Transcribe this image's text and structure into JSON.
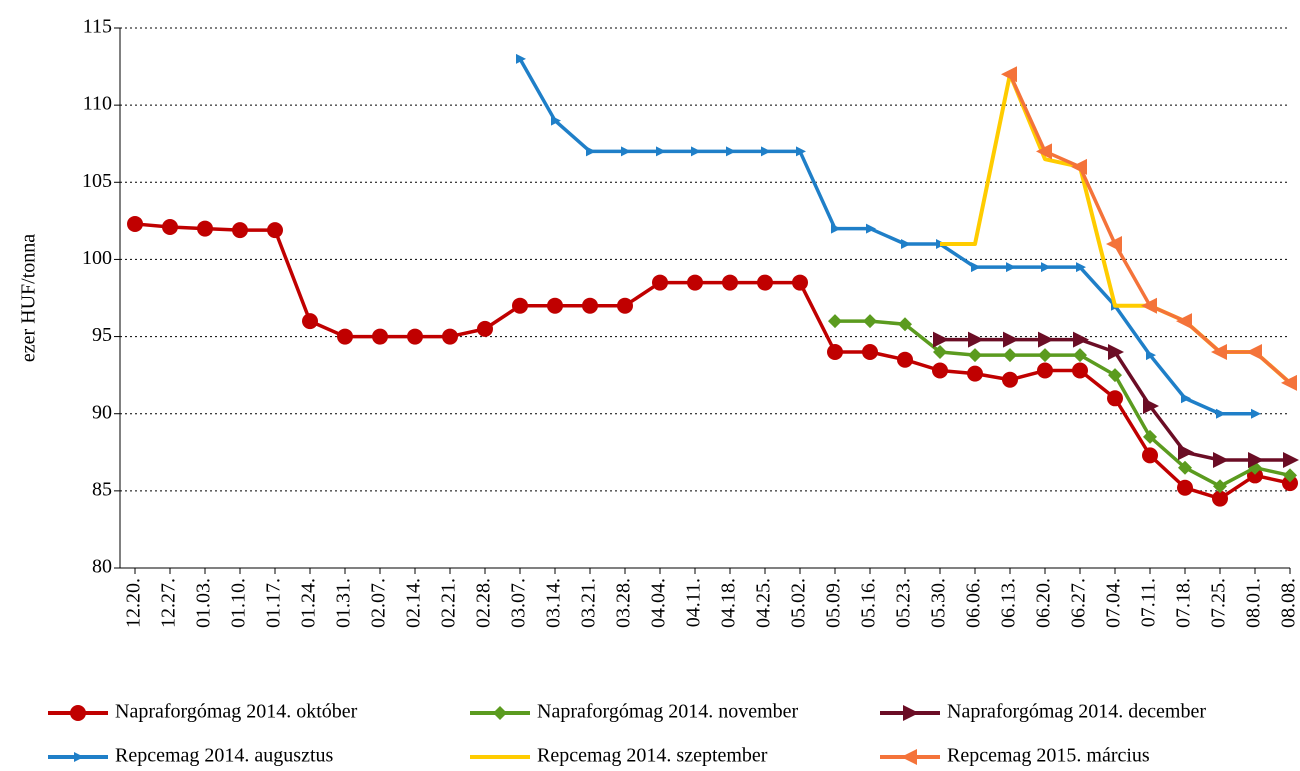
{
  "chart_data": {
    "type": "line",
    "ylabel": "ezer HUF/tonna",
    "categories": [
      "12.20.",
      "12.27.",
      "01.03.",
      "01.10.",
      "01.17.",
      "01.24.",
      "01.31.",
      "02.07.",
      "02.14.",
      "02.21.",
      "02.28.",
      "03.07.",
      "03.14.",
      "03.21.",
      "03.28.",
      "04.04.",
      "04.11.",
      "04.18.",
      "04.25.",
      "05.02.",
      "05.09.",
      "05.16.",
      "05.23.",
      "05.30.",
      "06.06.",
      "06.13.",
      "06.20.",
      "06.27.",
      "07.04.",
      "07.11.",
      "07.18.",
      "07.25.",
      "08.01.",
      "08.08."
    ],
    "ylim": [
      80,
      115
    ],
    "yticks": [
      80,
      85,
      90,
      95,
      100,
      105,
      110,
      115
    ],
    "grid": true,
    "legend": "bottom",
    "series": [
      {
        "name": "Napraforgómag 2014. október",
        "color": "#c00000",
        "marker": "circle",
        "values": [
          102.3,
          102.1,
          102,
          101.9,
          101.9,
          96,
          95,
          95,
          95,
          95,
          95.5,
          97,
          97,
          97,
          97,
          98.5,
          98.5,
          98.5,
          98.5,
          98.5,
          94,
          94,
          93.5,
          92.8,
          92.6,
          92.2,
          92.8,
          92.8,
          91,
          87.3,
          85.2,
          84.5,
          86,
          85.5
        ]
      },
      {
        "name": "Napraforgómag 2014. november",
        "color": "#5b9b1f",
        "marker": "diamond",
        "values": [
          null,
          null,
          null,
          null,
          null,
          null,
          null,
          null,
          null,
          null,
          null,
          null,
          null,
          null,
          null,
          null,
          null,
          null,
          null,
          null,
          96,
          96,
          95.8,
          94,
          93.8,
          93.8,
          93.8,
          93.8,
          92.5,
          88.5,
          86.5,
          85.3,
          86.5,
          86
        ]
      },
      {
        "name": "Napraforgómag 2014. december",
        "color": "#6b0d25",
        "marker": "arrow-right",
        "values": [
          null,
          null,
          null,
          null,
          null,
          null,
          null,
          null,
          null,
          null,
          null,
          null,
          null,
          null,
          null,
          null,
          null,
          null,
          null,
          null,
          null,
          null,
          null,
          94.8,
          94.8,
          94.8,
          94.8,
          94.8,
          94,
          90.5,
          87.5,
          87,
          87,
          87
        ]
      },
      {
        "name": "Repcemag 2014. augusztus",
        "color": "#1f7fc8",
        "marker": "arrow-right-small",
        "values": [
          null,
          null,
          null,
          null,
          null,
          null,
          null,
          null,
          null,
          null,
          null,
          113,
          109,
          107,
          107,
          107,
          107,
          107,
          107,
          107,
          102,
          102,
          101,
          101,
          99.5,
          99.5,
          99.5,
          99.5,
          97,
          93.8,
          91,
          90,
          90,
          null
        ]
      },
      {
        "name": "Repcemag 2014. szeptember",
        "color": "#ffcc00",
        "marker": "none",
        "values": [
          null,
          null,
          null,
          null,
          null,
          null,
          null,
          null,
          null,
          null,
          null,
          null,
          null,
          null,
          null,
          null,
          null,
          null,
          null,
          null,
          null,
          null,
          null,
          101,
          101,
          112,
          106.5,
          106,
          97,
          97,
          96,
          94,
          94,
          92
        ]
      },
      {
        "name": "Repcemag 2015. március",
        "color": "#f4733a",
        "marker": "arrow-left",
        "values": [
          null,
          null,
          null,
          null,
          null,
          null,
          null,
          null,
          null,
          null,
          null,
          null,
          null,
          null,
          null,
          null,
          null,
          null,
          null,
          null,
          null,
          null,
          null,
          null,
          null,
          112,
          107,
          106,
          101,
          97,
          96,
          94,
          94,
          92
        ]
      }
    ]
  }
}
